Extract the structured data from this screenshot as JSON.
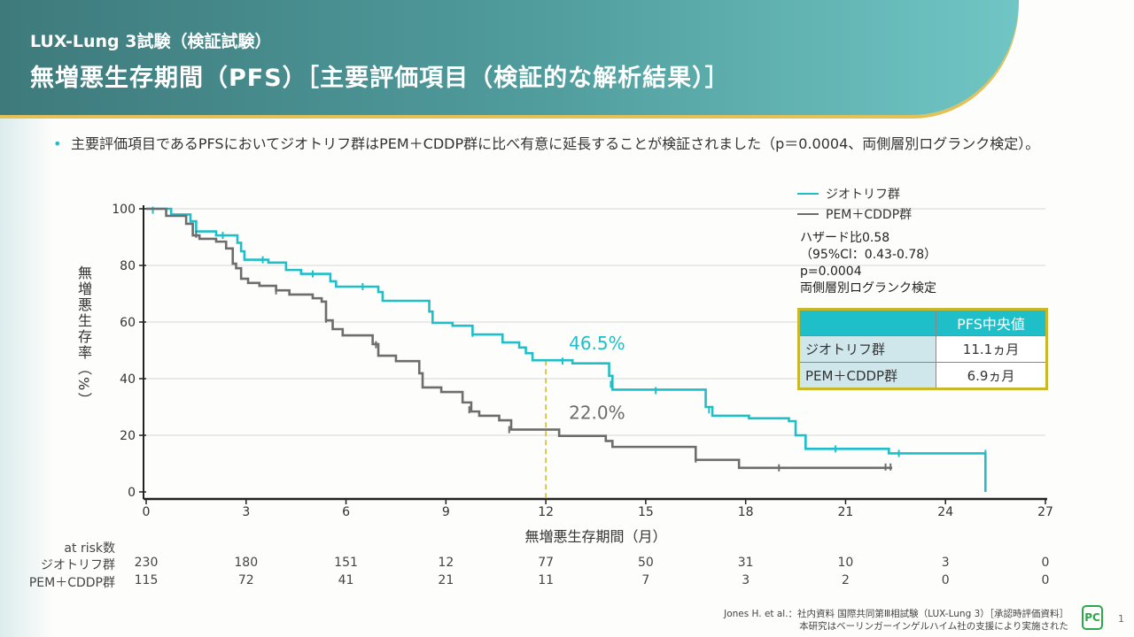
{
  "header": {
    "subtitle": "LUX-Lung 3試験（検証試験）",
    "title": "無増悪生存期間（PFS）［主要評価項目（検証的な解析結果）］"
  },
  "bullet": "主要評価項目であるPFSにおいてジオトリフ群はPEM＋CDDP群に比べ有意に延長することが検証されました（p＝0.0004、両側層別ログランク検定）。",
  "legend": {
    "a": "ジオトリフ群",
    "b": "PEM＋CDDP群"
  },
  "stats": [
    "ハザード比0.58",
    "（95%Cl：0.43-0.78）",
    "p=0.0004",
    "両側層別ログランク検定"
  ],
  "median_table": {
    "header": "PFS中央値",
    "rows": [
      {
        "group": "ジオトリフ群",
        "value": "11.1ヵ月"
      },
      {
        "group": "PEM＋CDDP群",
        "value": "6.9ヵ月"
      }
    ]
  },
  "risk": {
    "title": "at risk数",
    "a_label": "ジオトリフ群",
    "b_label": "PEM＋CDDP群",
    "a": [
      "230",
      "180",
      "151",
      "12",
      "77",
      "50",
      "31",
      "10",
      "3",
      "0"
    ],
    "b": [
      "115",
      "72",
      "41",
      "21",
      "11",
      "7",
      "3",
      "2",
      "0",
      "0"
    ]
  },
  "footer": {
    "line1": "Jones H. et al.：社内資料 国際共同第Ⅲ相試験（LUX-Lung 3）［承認時評価資料］",
    "line2": "本研究はベーリンガーインゲルハイム社の支援により実施された",
    "logo": "PC",
    "page": "1"
  },
  "chart_data": {
    "type": "line",
    "title": "",
    "xlabel": "無増悪生存期間（月）",
    "ylabel": "無増悪生存率（%）",
    "xlim": [
      0,
      27
    ],
    "ylim": [
      0,
      100
    ],
    "xticks": [
      "0",
      "3",
      "6",
      "9",
      "12",
      "15",
      "18",
      "21",
      "24",
      "27"
    ],
    "yticks": [
      "0",
      "20",
      "40",
      "60",
      "80",
      "100"
    ],
    "colors": {
      "a": "#1fbfc9",
      "b": "#6d6d6d",
      "ref": "#c8b830"
    },
    "annotations": [
      {
        "text": "46.5%",
        "series": "a",
        "x": 12,
        "y": 46.5
      },
      {
        "text": "22.0%",
        "series": "b",
        "x": 12,
        "y": 22.0
      }
    ],
    "series": [
      {
        "name": "ジオトリフ群",
        "key": "a",
        "steps": [
          [
            0,
            100
          ],
          [
            0.75,
            98
          ],
          [
            1.33,
            95.6
          ],
          [
            1.5,
            92
          ],
          [
            2.1,
            90.6
          ],
          [
            2.74,
            88
          ],
          [
            2.85,
            85
          ],
          [
            2.95,
            82
          ],
          [
            3.67,
            81
          ],
          [
            4.2,
            78.4
          ],
          [
            4.65,
            77
          ],
          [
            5.53,
            74.4
          ],
          [
            5.7,
            72.5
          ],
          [
            6.97,
            70.6
          ],
          [
            7.1,
            67.5
          ],
          [
            8.5,
            63.7
          ],
          [
            8.6,
            59.7
          ],
          [
            9.2,
            58.7
          ],
          [
            9.8,
            55.6
          ],
          [
            10.7,
            52.8
          ],
          [
            11.2,
            51
          ],
          [
            11.4,
            49
          ],
          [
            11.6,
            46.5
          ],
          [
            12.8,
            45.4
          ],
          [
            13.9,
            41
          ],
          [
            14.0,
            36.1
          ],
          [
            16.8,
            30
          ],
          [
            17.0,
            26.9
          ],
          [
            18.1,
            26
          ],
          [
            19.3,
            25
          ],
          [
            19.5,
            20
          ],
          [
            19.8,
            15.2
          ],
          [
            22.3,
            13.6
          ],
          [
            25.2,
            0
          ]
        ],
        "censored": [
          [
            0.2,
            99.5
          ],
          [
            2.3,
            90.6
          ],
          [
            3.5,
            82
          ],
          [
            5.0,
            77
          ],
          [
            6.5,
            72.5
          ],
          [
            9.8,
            56
          ],
          [
            12.5,
            46.2
          ],
          [
            13.95,
            38
          ],
          [
            15.3,
            35.8
          ],
          [
            16.9,
            29
          ],
          [
            20.7,
            15.2
          ],
          [
            22.6,
            13.6
          ],
          [
            25.2,
            13.6
          ]
        ]
      },
      {
        "name": "PEM＋CDDP群",
        "key": "b",
        "steps": [
          [
            0,
            100
          ],
          [
            0.6,
            97.5
          ],
          [
            1.2,
            94.7
          ],
          [
            1.4,
            90.6
          ],
          [
            1.6,
            89.4
          ],
          [
            2.1,
            88.4
          ],
          [
            2.4,
            86
          ],
          [
            2.6,
            80.6
          ],
          [
            2.7,
            79
          ],
          [
            2.85,
            75.3
          ],
          [
            3.06,
            73.8
          ],
          [
            3.4,
            72.8
          ],
          [
            3.9,
            71.2
          ],
          [
            4.3,
            69.7
          ],
          [
            5.0,
            68.4
          ],
          [
            5.27,
            67.2
          ],
          [
            5.4,
            60.6
          ],
          [
            5.6,
            57.5
          ],
          [
            5.9,
            55.3
          ],
          [
            6.8,
            52.2
          ],
          [
            6.97,
            48.1
          ],
          [
            7.5,
            46.2
          ],
          [
            8.2,
            41.9
          ],
          [
            8.3,
            36.9
          ],
          [
            8.86,
            35.3
          ],
          [
            9.5,
            31.6
          ],
          [
            9.76,
            28.4
          ],
          [
            10.0,
            26.9
          ],
          [
            10.6,
            25.3
          ],
          [
            10.96,
            22
          ],
          [
            12.4,
            19.8
          ],
          [
            13.8,
            18
          ],
          [
            14.0,
            15.9
          ],
          [
            16.5,
            11.3
          ],
          [
            17.8,
            8.5
          ],
          [
            22.4,
            8.5
          ]
        ],
        "censored": [
          [
            1.5,
            91
          ],
          [
            3.9,
            71
          ],
          [
            5.4,
            61
          ],
          [
            6.9,
            52
          ],
          [
            8.3,
            39
          ],
          [
            9.7,
            29
          ],
          [
            10.9,
            22
          ],
          [
            16.5,
            11.6
          ],
          [
            19.0,
            8.5
          ],
          [
            22.2,
            8.8
          ],
          [
            22.35,
            8.8
          ]
        ]
      }
    ]
  }
}
